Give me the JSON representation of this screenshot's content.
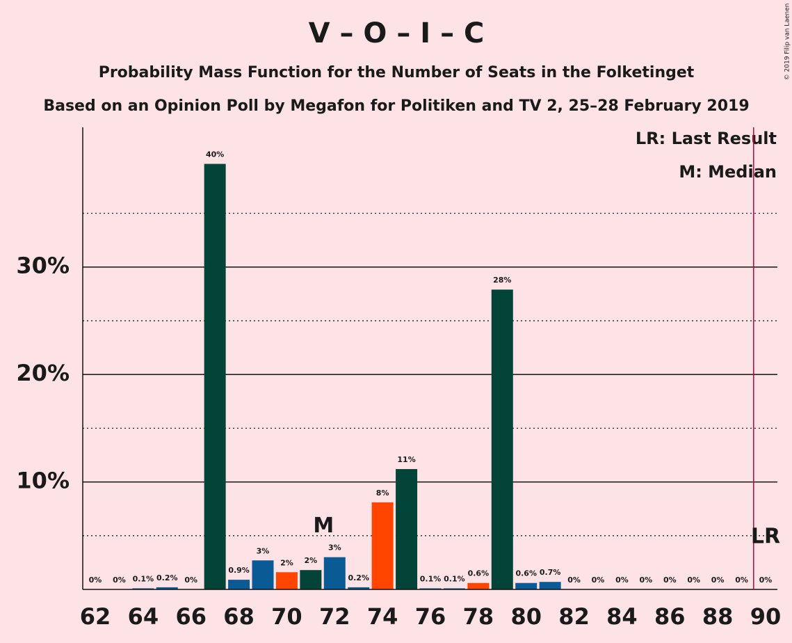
{
  "chart_data": {
    "type": "bar",
    "title": "V – O – I – C",
    "subtitle": "Probability Mass Function for the Number of Seats in the Folketinget",
    "subtitle2": "Based on an Opinion Poll by Megafon for Politiken and TV 2, 25–28 February 2019",
    "copyright": "© 2019 Filip van Laenen",
    "x": [
      62,
      63,
      64,
      65,
      66,
      67,
      68,
      69,
      70,
      71,
      72,
      73,
      74,
      75,
      76,
      77,
      78,
      79,
      80,
      81,
      82,
      83,
      84,
      85,
      86,
      87,
      88,
      89,
      90
    ],
    "values": [
      0,
      0,
      0.1,
      0.2,
      0,
      39.6,
      0.9,
      2.7,
      1.6,
      1.8,
      3.0,
      0.2,
      8.1,
      11.2,
      0.1,
      0.1,
      0.6,
      27.9,
      0.6,
      0.7,
      0,
      0,
      0,
      0,
      0,
      0,
      0,
      0,
      0
    ],
    "value_labels": [
      "0%",
      "0%",
      "0.1%",
      "0.2%",
      "0%",
      "40%",
      "0.9%",
      "3%",
      "2%",
      "2%",
      "3%",
      "0.2%",
      "8%",
      "11%",
      "0.1%",
      "0.1%",
      "0.6%",
      "28%",
      "0.6%",
      "0.7%",
      "0%",
      "0%",
      "0%",
      "0%",
      "0%",
      "0%",
      "0%",
      "0%",
      "0%"
    ],
    "colors": [
      "#ff4500",
      "#024538",
      "#0a5a96",
      "#0a5a96",
      "#ff4500",
      "#024538",
      "#0a5a96",
      "#0a5a96",
      "#ff4500",
      "#024538",
      "#0a5a96",
      "#0a5a96",
      "#ff4500",
      "#024538",
      "#0a5a96",
      "#0a5a96",
      "#ff4500",
      "#024538",
      "#0a5a96",
      "#0a5a96",
      "#ff4500",
      "#024538",
      "#0a5a96",
      "#0a5a96",
      "#ff4500",
      "#024538",
      "#0a5a96",
      "#0a5a96",
      "#ff4500"
    ],
    "xlim": [
      61.5,
      90.5
    ],
    "xticks": [
      62,
      64,
      66,
      68,
      70,
      72,
      74,
      76,
      78,
      80,
      82,
      84,
      86,
      88,
      90
    ],
    "ylim": [
      0,
      43
    ],
    "yticks": [
      {
        "value": 10,
        "label": "10%"
      },
      {
        "value": 20,
        "label": "20%"
      },
      {
        "value": 30,
        "label": "30%"
      }
    ],
    "minor_yticks": [
      5,
      15,
      25,
      35
    ],
    "grid": true,
    "median": {
      "x": 72,
      "label": "M"
    },
    "last_result": {
      "x": 90,
      "label": "LR"
    },
    "legend": [
      "LR: Last Result",
      "M: Median"
    ]
  }
}
